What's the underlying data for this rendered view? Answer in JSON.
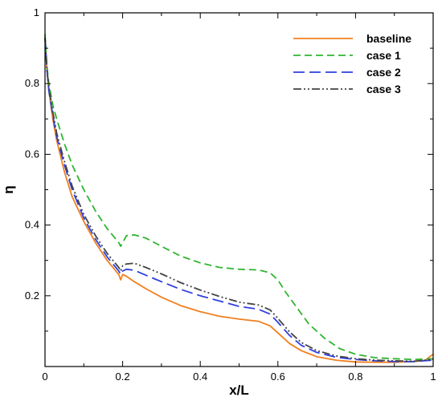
{
  "chart_data": {
    "type": "line",
    "title": "",
    "xlabel": "x/L",
    "ylabel": "η",
    "xlim": [
      0,
      1
    ],
    "ylim": [
      0,
      1
    ],
    "xticks": [
      0,
      0.2,
      0.4,
      0.6,
      0.8,
      1
    ],
    "xtick_labels": [
      "0",
      "0.2",
      "0.4",
      "0.6",
      "0.8",
      "1"
    ],
    "yticks": [
      0.2,
      0.4,
      0.6,
      0.8,
      1
    ],
    "ytick_labels": [
      "0.2",
      "0.4",
      "0.6",
      "0.8",
      "1"
    ],
    "grid": false,
    "legend_position": "top-right",
    "series": [
      {
        "name": "baseline",
        "color": "#f07f1e",
        "dash": "solid",
        "x": [
          0,
          0.005,
          0.01,
          0.02,
          0.03,
          0.05,
          0.07,
          0.1,
          0.13,
          0.16,
          0.19,
          0.195,
          0.2,
          0.21,
          0.23,
          0.26,
          0.3,
          0.35,
          0.4,
          0.45,
          0.5,
          0.55,
          0.58,
          0.6,
          0.63,
          0.66,
          0.7,
          0.75,
          0.8,
          0.85,
          0.9,
          0.95,
          0.98,
          1
        ],
        "y": [
          0.93,
          0.84,
          0.78,
          0.7,
          0.64,
          0.55,
          0.48,
          0.41,
          0.35,
          0.3,
          0.26,
          0.245,
          0.26,
          0.255,
          0.24,
          0.22,
          0.196,
          0.172,
          0.155,
          0.142,
          0.134,
          0.128,
          0.115,
          0.095,
          0.065,
          0.045,
          0.028,
          0.018,
          0.013,
          0.012,
          0.012,
          0.014,
          0.018,
          0.035
        ]
      },
      {
        "name": "case 1",
        "color": "#2fb52f",
        "dash": "9,5",
        "x": [
          0,
          0.005,
          0.01,
          0.02,
          0.03,
          0.05,
          0.07,
          0.1,
          0.13,
          0.16,
          0.19,
          0.195,
          0.2,
          0.21,
          0.23,
          0.26,
          0.3,
          0.35,
          0.4,
          0.45,
          0.5,
          0.55,
          0.58,
          0.6,
          0.62,
          0.65,
          0.68,
          0.72,
          0.76,
          0.8,
          0.85,
          0.9,
          0.95,
          1
        ],
        "y": [
          0.94,
          0.85,
          0.8,
          0.74,
          0.7,
          0.63,
          0.57,
          0.5,
          0.44,
          0.39,
          0.35,
          0.34,
          0.35,
          0.37,
          0.372,
          0.363,
          0.34,
          0.312,
          0.293,
          0.28,
          0.275,
          0.273,
          0.265,
          0.245,
          0.21,
          0.165,
          0.12,
          0.08,
          0.05,
          0.035,
          0.025,
          0.022,
          0.02,
          0.022
        ]
      },
      {
        "name": "case 2",
        "color": "#2f3fe0",
        "dash": "14,6",
        "x": [
          0,
          0.005,
          0.01,
          0.02,
          0.03,
          0.05,
          0.07,
          0.1,
          0.13,
          0.16,
          0.19,
          0.195,
          0.2,
          0.21,
          0.23,
          0.26,
          0.3,
          0.35,
          0.4,
          0.45,
          0.5,
          0.55,
          0.58,
          0.6,
          0.63,
          0.66,
          0.7,
          0.75,
          0.8,
          0.85,
          0.9,
          0.95,
          1
        ],
        "y": [
          0.93,
          0.84,
          0.78,
          0.71,
          0.65,
          0.57,
          0.5,
          0.42,
          0.36,
          0.31,
          0.27,
          0.26,
          0.27,
          0.275,
          0.272,
          0.258,
          0.24,
          0.218,
          0.2,
          0.185,
          0.17,
          0.162,
          0.148,
          0.125,
          0.088,
          0.06,
          0.04,
          0.026,
          0.02,
          0.016,
          0.014,
          0.014,
          0.018
        ]
      },
      {
        "name": "case 3",
        "color": "#444444",
        "dash": "10,3,2,3,2,3",
        "x": [
          0,
          0.005,
          0.01,
          0.02,
          0.03,
          0.05,
          0.07,
          0.1,
          0.13,
          0.16,
          0.19,
          0.195,
          0.2,
          0.21,
          0.23,
          0.26,
          0.3,
          0.35,
          0.4,
          0.45,
          0.5,
          0.55,
          0.58,
          0.6,
          0.63,
          0.66,
          0.7,
          0.75,
          0.8,
          0.85,
          0.9,
          0.95,
          1
        ],
        "y": [
          0.93,
          0.84,
          0.79,
          0.72,
          0.66,
          0.58,
          0.51,
          0.43,
          0.37,
          0.32,
          0.28,
          0.27,
          0.285,
          0.29,
          0.292,
          0.28,
          0.262,
          0.237,
          0.216,
          0.198,
          0.182,
          0.174,
          0.16,
          0.136,
          0.098,
          0.068,
          0.045,
          0.03,
          0.022,
          0.018,
          0.016,
          0.015,
          0.02
        ]
      }
    ]
  }
}
